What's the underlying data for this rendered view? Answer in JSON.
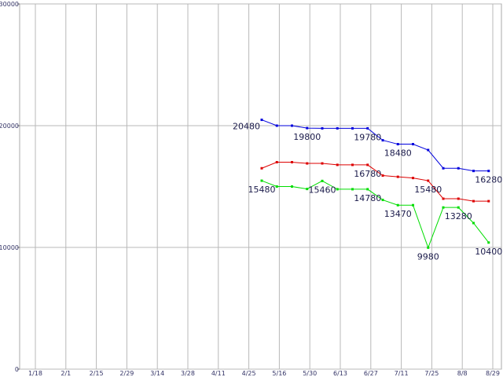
{
  "chart_data": {
    "type": "line",
    "title": "",
    "xlabel": "",
    "ylabel": "",
    "x_tick_labels": [
      "1/18",
      "2/1",
      "2/15",
      "2/29",
      "3/14",
      "3/28",
      "4/11",
      "4/25",
      "5/16",
      "5/30",
      "6/13",
      "6/27",
      "7/11",
      "7/25",
      "8/8",
      "8/29"
    ],
    "y_tick_labels": [
      "30000",
      "20000",
      "10000",
      "0"
    ],
    "y_ticks": [
      30000,
      20000,
      10000,
      0
    ],
    "ylim": [
      0,
      30000
    ],
    "grid": true,
    "legend": "none",
    "x": [
      "5/9",
      "5/16",
      "5/23",
      "5/30",
      "6/6",
      "6/13",
      "6/20",
      "6/27",
      "7/4",
      "7/11",
      "7/18",
      "7/25",
      "8/1",
      "8/8",
      "8/15",
      "8/29"
    ],
    "series": [
      {
        "color": "#0000dd",
        "values": [
          20480,
          20000,
          20000,
          19800,
          19780,
          19780,
          19780,
          19780,
          18800,
          18480,
          18480,
          18000,
          16500,
          16500,
          16280,
          16280
        ]
      },
      {
        "color": "#dd0000",
        "values": [
          16500,
          17000,
          17000,
          16900,
          16900,
          16780,
          16780,
          16780,
          15900,
          15800,
          15700,
          15480,
          14000,
          14000,
          13800,
          13800
        ]
      },
      {
        "color": "#00dd00",
        "values": [
          15480,
          15000,
          15000,
          14800,
          15460,
          14780,
          14780,
          14780,
          13900,
          13470,
          13470,
          9980,
          13280,
          13280,
          12000,
          10400
        ]
      }
    ],
    "data_labels": [
      {
        "text": "20480",
        "series": 0,
        "index": 0,
        "pos": "left"
      },
      {
        "text": "19800",
        "series": 0,
        "index": 3,
        "pos": "below"
      },
      {
        "text": "19780",
        "series": 0,
        "index": 7,
        "pos": "below"
      },
      {
        "text": "18480",
        "series": 0,
        "index": 9,
        "pos": "below"
      },
      {
        "text": "16280",
        "series": 0,
        "index": 15,
        "pos": "below"
      },
      {
        "text": "16780",
        "series": 1,
        "index": 7,
        "pos": "below"
      },
      {
        "text": "15480",
        "series": 1,
        "index": 11,
        "pos": "below"
      },
      {
        "text": "15480",
        "series": 2,
        "index": 0,
        "pos": "below"
      },
      {
        "text": "15460",
        "series": 2,
        "index": 4,
        "pos": "below"
      },
      {
        "text": "14780",
        "series": 2,
        "index": 7,
        "pos": "below"
      },
      {
        "text": "13470",
        "series": 2,
        "index": 9,
        "pos": "below"
      },
      {
        "text": "9980",
        "series": 2,
        "index": 11,
        "pos": "below"
      },
      {
        "text": "13280",
        "series": 2,
        "index": 13,
        "pos": "below"
      },
      {
        "text": "10400",
        "series": 2,
        "index": 15,
        "pos": "below"
      }
    ]
  }
}
